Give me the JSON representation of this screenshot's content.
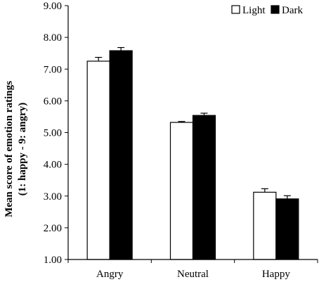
{
  "chart_data": {
    "type": "bar",
    "categories": [
      "Angry",
      "Neutral",
      "Happy"
    ],
    "series": [
      {
        "name": "Light",
        "values": [
          7.25,
          5.32,
          3.12
        ],
        "errors": [
          0.12,
          0.03,
          0.11
        ],
        "color": "#ffffff"
      },
      {
        "name": "Dark",
        "values": [
          7.58,
          5.54,
          2.91
        ],
        "errors": [
          0.1,
          0.07,
          0.1
        ],
        "color": "#000000"
      }
    ],
    "ylabel_lines": [
      "Mean score of emotion ratings",
      "(1: happy - 9: angry)"
    ],
    "ylim": [
      1.0,
      9.0
    ],
    "yticks": [
      "1.00",
      "2.00",
      "3.00",
      "4.00",
      "5.00",
      "6.00",
      "7.00",
      "8.00",
      "9.00"
    ],
    "grid": false,
    "legend": "top-right"
  }
}
